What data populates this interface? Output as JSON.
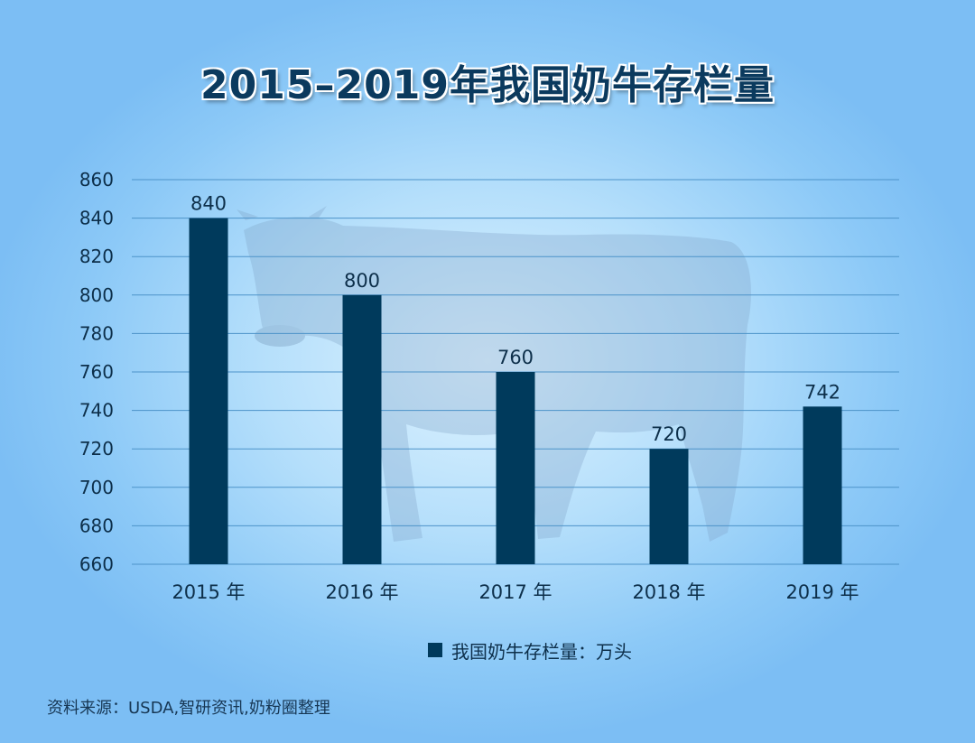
{
  "title": "2015–2019年我国奶牛存栏量",
  "source": "资料来源：USDA,智研资讯,奶粉圈整理",
  "legend": {
    "label": "我国奶牛存栏量：万头"
  },
  "colors": {
    "bar": "#003a5c",
    "grid": "#4d93c9",
    "text": "#0d2f4a"
  },
  "chart_data": {
    "type": "bar",
    "title": "2015–2019年我国奶牛存栏量",
    "categories": [
      "2015 年",
      "2016 年",
      "2017 年",
      "2018 年",
      "2019 年"
    ],
    "series": [
      {
        "name": "我国奶牛存栏量：万头",
        "values": [
          840,
          800,
          760,
          720,
          742
        ]
      }
    ],
    "ylim": [
      660,
      860
    ],
    "yticks": [
      660,
      680,
      700,
      720,
      740,
      760,
      780,
      800,
      820,
      840,
      860
    ],
    "grid": true,
    "data_labels": true,
    "legend_position": "bottom"
  }
}
